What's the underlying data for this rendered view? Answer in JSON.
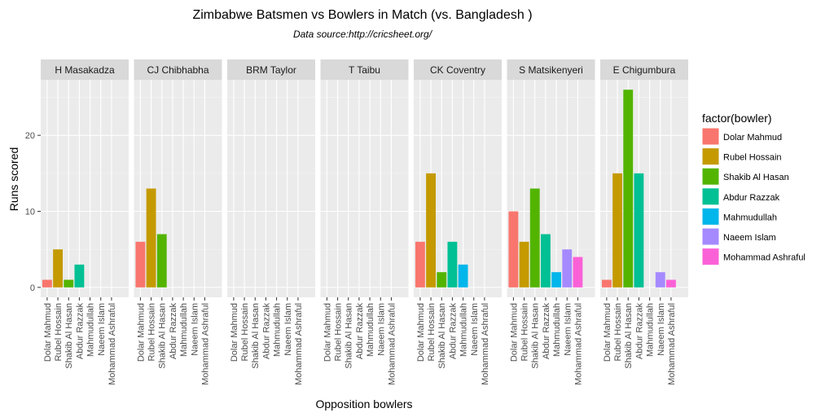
{
  "chart_data": {
    "type": "bar",
    "title": "Zimbabwe Batsmen vs Bowlers in Match (vs. Bangladesh )",
    "subtitle": "Data source:http://cricsheet.org/",
    "x_label": "Opposition bowlers",
    "y_label": "Runs scored",
    "legend_title": "factor(bowler)",
    "categories": [
      "Dolar Mahmud",
      "Rubel Hossain",
      "Shakib Al Hasan",
      "Abdur Razzak",
      "Mahmudullah",
      "Naeem Islam",
      "Mohammad Ashraful"
    ],
    "colors": [
      "#F8766D",
      "#C49A00",
      "#53B400",
      "#00C094",
      "#00B6EB",
      "#A58AFF",
      "#FB61D7"
    ],
    "facets": [
      {
        "name": "H Masakadza",
        "values": [
          1,
          5,
          1,
          3,
          null,
          null,
          null
        ]
      },
      {
        "name": "CJ Chibhabha",
        "values": [
          6,
          13,
          7,
          null,
          null,
          null,
          null
        ]
      },
      {
        "name": "BRM Taylor",
        "values": [
          null,
          null,
          null,
          null,
          null,
          null,
          null
        ]
      },
      {
        "name": "T Taibu",
        "values": [
          null,
          null,
          null,
          null,
          null,
          null,
          null
        ]
      },
      {
        "name": "CK Coventry",
        "values": [
          6,
          15,
          2,
          6,
          3,
          null,
          null
        ]
      },
      {
        "name": "S Matsikenyeri",
        "values": [
          10,
          6,
          13,
          7,
          2,
          5,
          4
        ]
      },
      {
        "name": "E Chigumbura",
        "values": [
          1,
          15,
          26,
          15,
          null,
          2,
          1
        ]
      }
    ],
    "ylim": [
      -1.3,
      27.3
    ],
    "yticks": [
      0,
      10,
      20
    ],
    "grid": true
  }
}
